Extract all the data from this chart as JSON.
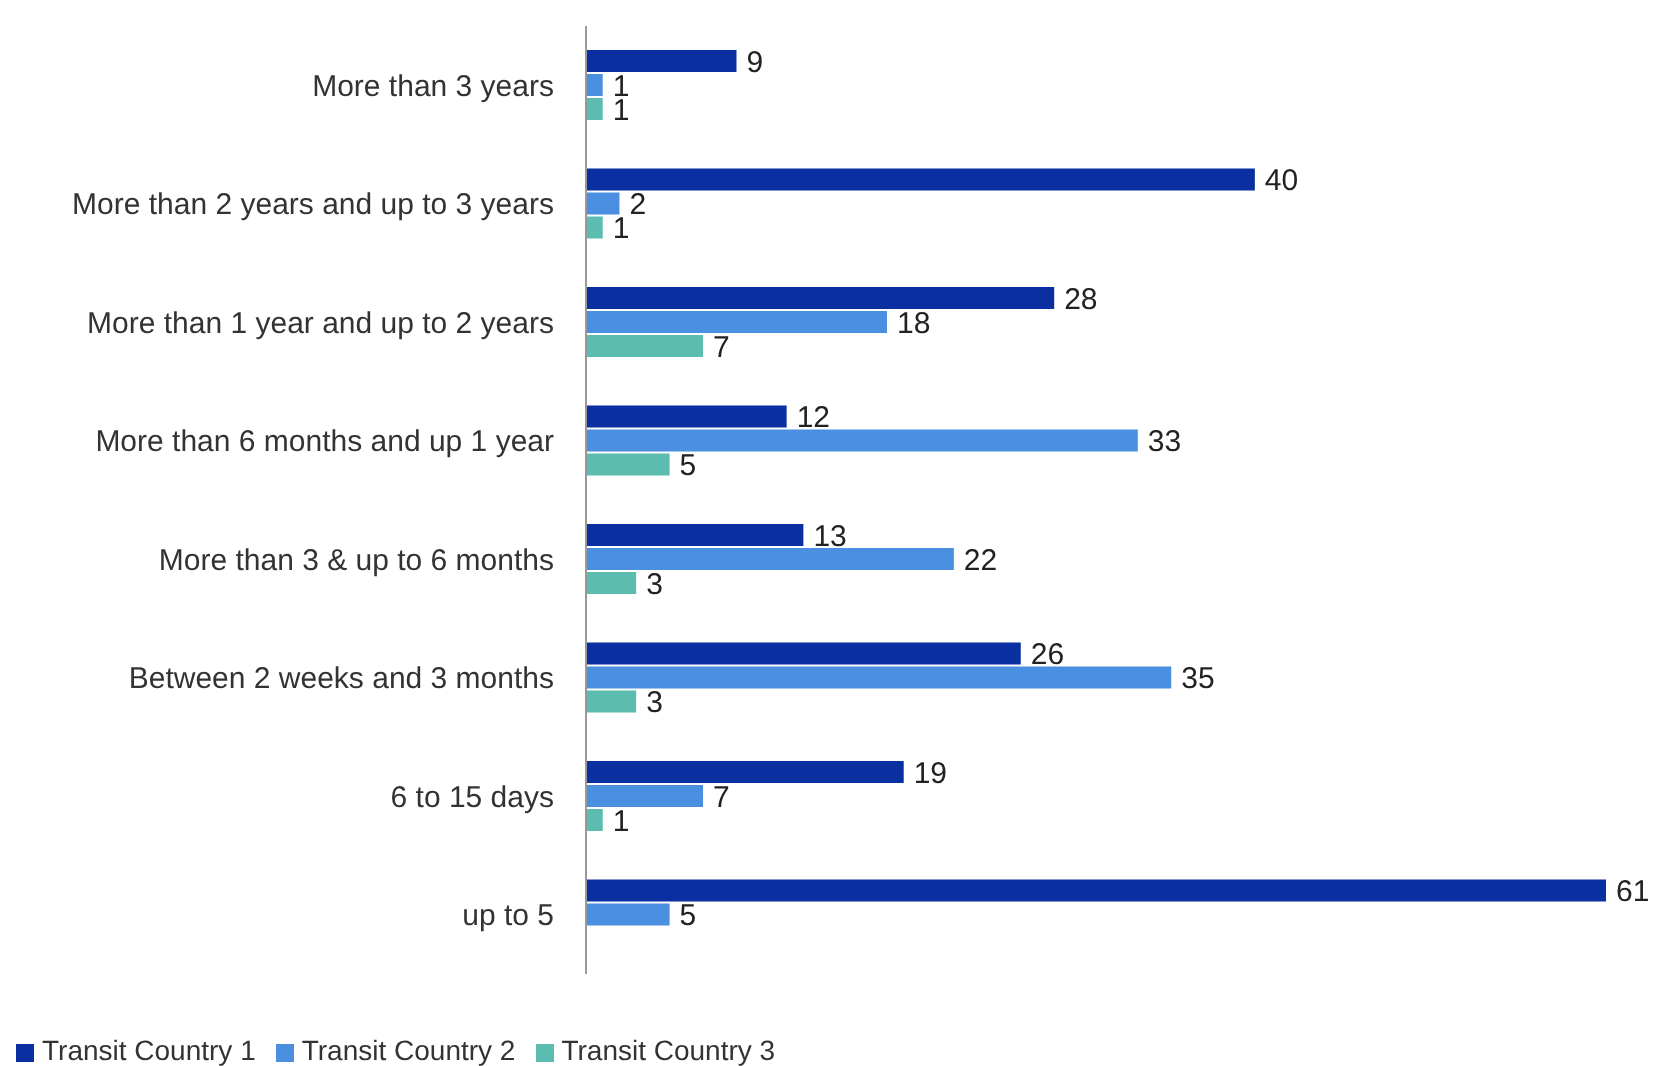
{
  "chart_data": {
    "type": "bar",
    "orientation": "horizontal",
    "categories": [
      "More than 3 years",
      "More than 2 years and up to 3 years",
      "More than 1 year and up to 2 years",
      "More than 6 months and up 1 year",
      "More than 3 & up to 6 months",
      "Between 2 weeks and 3 months",
      "6 to 15 days",
      "up to 5"
    ],
    "series": [
      {
        "name": "Transit Country 1",
        "color": "#0a2fa0",
        "values": [
          9,
          40,
          28,
          12,
          13,
          26,
          19,
          61
        ]
      },
      {
        "name": "Transit Country 2",
        "color": "#4a8fe0",
        "values": [
          1,
          2,
          18,
          33,
          22,
          35,
          7,
          5
        ]
      },
      {
        "name": "Transit Country 3",
        "color": "#5bbcaf",
        "values": [
          1,
          1,
          7,
          5,
          3,
          3,
          1,
          null
        ]
      }
    ],
    "data_labels": true,
    "grid": false,
    "legend": "bottom left"
  }
}
